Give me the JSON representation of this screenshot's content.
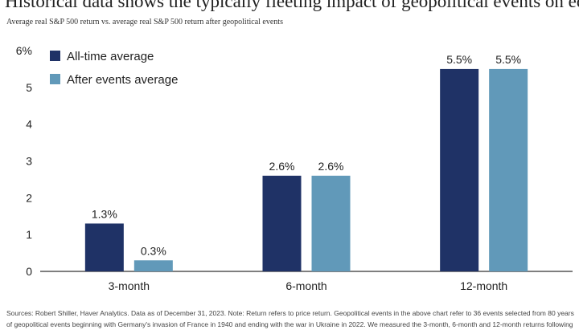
{
  "header": {
    "title": "Historical data shows the typically fleeting impact of geopolitical events on equity returns",
    "subtitle": "Average real S&P 500 return vs. average real S&P 500 return after geopolitical events"
  },
  "footer": {
    "line1": "Sources: Robert Shiller, Haver Analytics. Data as of December 31, 2023. Note: Return refers to price return. Geopolitical events in the above chart refer to 36 events selected from 80 years",
    "line2": "of geopolitical events beginning with Germany's invasion of France in 1940 and ending with the war in Ukraine in 2022. We measured the 3-month, 6-month and 12-month returns following"
  },
  "colors": {
    "all_time": "#1f3266",
    "after_events": "#6199b9",
    "axis": "#333333"
  },
  "chart_data": {
    "type": "bar",
    "title": "",
    "categories": [
      "3-month",
      "6-month",
      "12-month"
    ],
    "series": [
      {
        "name": "All-time average",
        "values": [
          1.3,
          2.6,
          5.5
        ],
        "labels": [
          "1.3%",
          "2.6%",
          "5.5%"
        ]
      },
      {
        "name": "After events average",
        "values": [
          0.3,
          2.6,
          5.5
        ],
        "labels": [
          "0.3%",
          "2.6%",
          "5.5%"
        ]
      }
    ],
    "ylim": [
      0,
      6
    ],
    "yticks": [
      0,
      1,
      2,
      3,
      4,
      5,
      6
    ],
    "ytick_labels": [
      "0",
      "1",
      "2",
      "3",
      "4",
      "5",
      "6%"
    ],
    "legend_position": "top-left",
    "xlabel": "",
    "ylabel": ""
  }
}
